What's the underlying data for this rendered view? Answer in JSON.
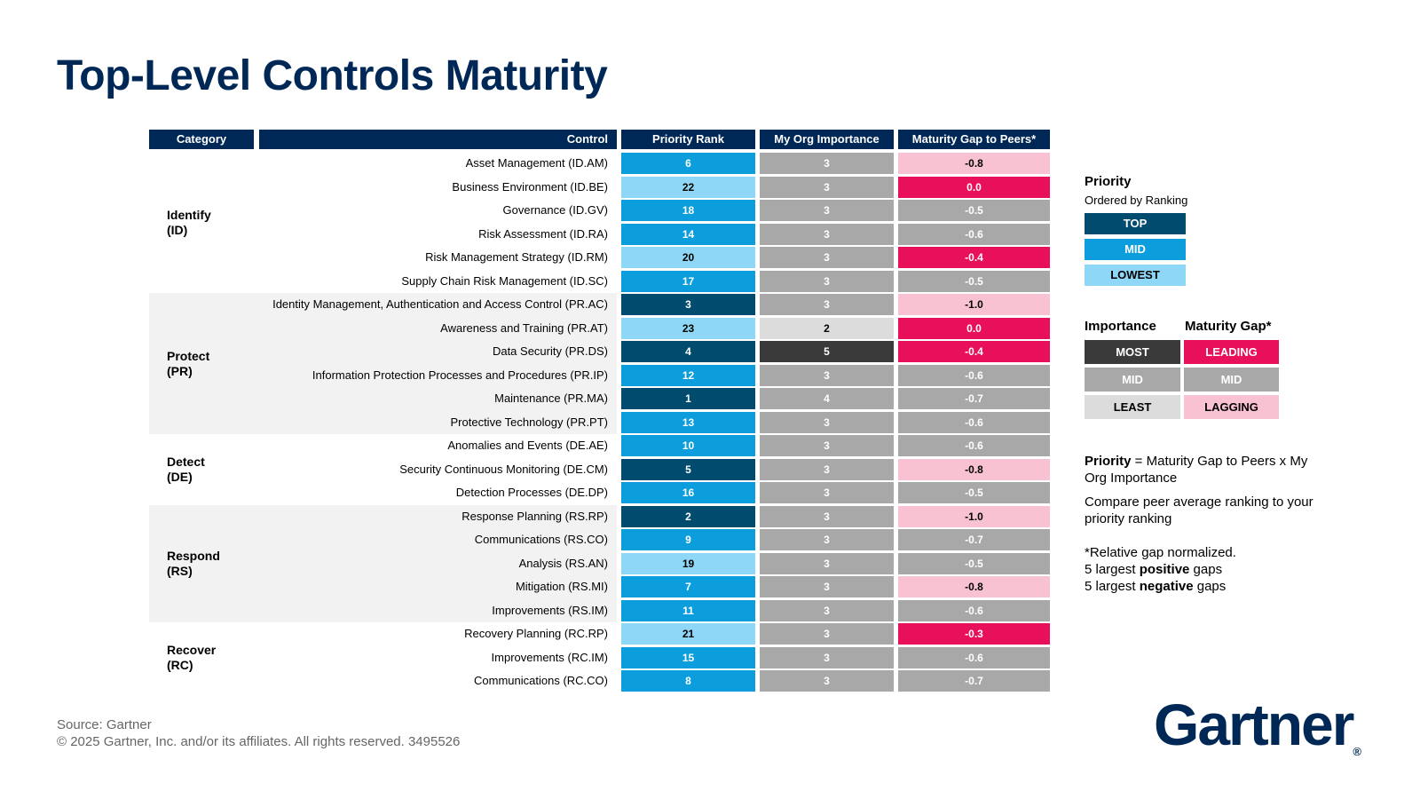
{
  "title": "Top-Level Controls Maturity",
  "colors": {
    "navy": "#002856",
    "rank_top": "#004b6e",
    "rank_mid": "#0c9edc",
    "rank_lowest": "#8fd7f6",
    "importance_most": "#3a3a3a",
    "importance_mid": "#a8a8a8",
    "importance_least": "#dcdcdc",
    "gap_leading": "#e8105a",
    "gap_mid": "#a8a8a8",
    "gap_lagging": "#f8c2d3"
  },
  "table": {
    "headers": {
      "category": "Category",
      "control": "Control",
      "priority_rank": "Priority Rank",
      "importance": "My Org Importance",
      "gap": "Maturity Gap to Peers*"
    },
    "groups": [
      {
        "label": "Identify\n(ID)",
        "rows": [
          {
            "control": "Asset Management (ID.AM)",
            "rank": "6",
            "rank_level": "mid",
            "importance": "3",
            "importance_level": "mid",
            "gap": "-0.8",
            "gap_level": "lagging"
          },
          {
            "control": "Business Environment (ID.BE)",
            "rank": "22",
            "rank_level": "lowest",
            "importance": "3",
            "importance_level": "mid",
            "gap": "0.0",
            "gap_level": "leading"
          },
          {
            "control": "Governance (ID.GV)",
            "rank": "18",
            "rank_level": "mid",
            "importance": "3",
            "importance_level": "mid",
            "gap": "-0.5",
            "gap_level": "mid"
          },
          {
            "control": "Risk Assessment (ID.RA)",
            "rank": "14",
            "rank_level": "mid",
            "importance": "3",
            "importance_level": "mid",
            "gap": "-0.6",
            "gap_level": "mid"
          },
          {
            "control": "Risk Management Strategy (ID.RM)",
            "rank": "20",
            "rank_level": "lowest",
            "importance": "3",
            "importance_level": "mid",
            "gap": "-0.4",
            "gap_level": "leading"
          },
          {
            "control": "Supply Chain Risk Management (ID.SC)",
            "rank": "17",
            "rank_level": "mid",
            "importance": "3",
            "importance_level": "mid",
            "gap": "-0.5",
            "gap_level": "mid"
          }
        ]
      },
      {
        "label": "Protect\n(PR)",
        "rows": [
          {
            "control": "Identity Management, Authentication and Access Control (PR.AC)",
            "rank": "3",
            "rank_level": "top",
            "importance": "3",
            "importance_level": "mid",
            "gap": "-1.0",
            "gap_level": "lagging"
          },
          {
            "control": "Awareness and Training (PR.AT)",
            "rank": "23",
            "rank_level": "lowest",
            "importance": "2",
            "importance_level": "least",
            "gap": "0.0",
            "gap_level": "leading"
          },
          {
            "control": "Data Security (PR.DS)",
            "rank": "4",
            "rank_level": "top",
            "importance": "5",
            "importance_level": "most",
            "gap": "-0.4",
            "gap_level": "leading"
          },
          {
            "control": "Information Protection Processes and Procedures (PR.IP)",
            "rank": "12",
            "rank_level": "mid",
            "importance": "3",
            "importance_level": "mid",
            "gap": "-0.6",
            "gap_level": "mid"
          },
          {
            "control": "Maintenance (PR.MA)",
            "rank": "1",
            "rank_level": "top",
            "importance": "4",
            "importance_level": "mid",
            "gap": "-0.7",
            "gap_level": "mid"
          },
          {
            "control": "Protective Technology (PR.PT)",
            "rank": "13",
            "rank_level": "mid",
            "importance": "3",
            "importance_level": "mid",
            "gap": "-0.6",
            "gap_level": "mid"
          }
        ]
      },
      {
        "label": "Detect\n(DE)",
        "rows": [
          {
            "control": "Anomalies and Events (DE.AE)",
            "rank": "10",
            "rank_level": "mid",
            "importance": "3",
            "importance_level": "mid",
            "gap": "-0.6",
            "gap_level": "mid"
          },
          {
            "control": "Security Continuous Monitoring (DE.CM)",
            "rank": "5",
            "rank_level": "top",
            "importance": "3",
            "importance_level": "mid",
            "gap": "-0.8",
            "gap_level": "lagging"
          },
          {
            "control": "Detection Processes (DE.DP)",
            "rank": "16",
            "rank_level": "mid",
            "importance": "3",
            "importance_level": "mid",
            "gap": "-0.5",
            "gap_level": "mid"
          }
        ]
      },
      {
        "label": "Respond\n(RS)",
        "rows": [
          {
            "control": "Response Planning (RS.RP)",
            "rank": "2",
            "rank_level": "top",
            "importance": "3",
            "importance_level": "mid",
            "gap": "-1.0",
            "gap_level": "lagging"
          },
          {
            "control": "Communications (RS.CO)",
            "rank": "9",
            "rank_level": "mid",
            "importance": "3",
            "importance_level": "mid",
            "gap": "-0.7",
            "gap_level": "mid"
          },
          {
            "control": "Analysis (RS.AN)",
            "rank": "19",
            "rank_level": "lowest",
            "importance": "3",
            "importance_level": "mid",
            "gap": "-0.5",
            "gap_level": "mid"
          },
          {
            "control": "Mitigation (RS.MI)",
            "rank": "7",
            "rank_level": "mid",
            "importance": "3",
            "importance_level": "mid",
            "gap": "-0.8",
            "gap_level": "lagging"
          },
          {
            "control": "Improvements (RS.IM)",
            "rank": "11",
            "rank_level": "mid",
            "importance": "3",
            "importance_level": "mid",
            "gap": "-0.6",
            "gap_level": "mid"
          }
        ]
      },
      {
        "label": "Recover\n(RC)",
        "rows": [
          {
            "control": "Recovery Planning (RC.RP)",
            "rank": "21",
            "rank_level": "lowest",
            "importance": "3",
            "importance_level": "mid",
            "gap": "-0.3",
            "gap_level": "leading"
          },
          {
            "control": "Improvements (RC.IM)",
            "rank": "15",
            "rank_level": "mid",
            "importance": "3",
            "importance_level": "mid",
            "gap": "-0.6",
            "gap_level": "mid"
          },
          {
            "control": "Communications (RC.CO)",
            "rank": "8",
            "rank_level": "mid",
            "importance": "3",
            "importance_level": "mid",
            "gap": "-0.7",
            "gap_level": "mid"
          }
        ]
      }
    ]
  },
  "legend": {
    "priority_title": "Priority",
    "priority_subtitle": "Ordered by Ranking",
    "priority_items": [
      "TOP",
      "MID",
      "LOWEST"
    ],
    "importance_title": "Importance",
    "importance_items": [
      "MOST",
      "MID",
      "LEAST"
    ],
    "gap_title": "Maturity Gap*",
    "gap_items": [
      "LEADING",
      "MID",
      "LAGGING"
    ]
  },
  "notes": {
    "formula_bold": "Priority",
    "formula_rest": " = Maturity Gap to Peers x My Org Importance",
    "compare": "Compare peer average ranking to your priority ranking",
    "footnote_line1": "*Relative gap normalized.",
    "footnote_line2_pre": "5 largest ",
    "footnote_line2_bold": "positive",
    "footnote_line2_post": " gaps",
    "footnote_line3_pre": "5 largest ",
    "footnote_line3_bold": "negative",
    "footnote_line3_post": " gaps"
  },
  "footer": {
    "source": "Source: Gartner",
    "copyright": "© 2025 Gartner, Inc. and/or its affiliates. All rights reserved. 3495526"
  },
  "logo": {
    "text": "Gartner",
    "mark": "®"
  }
}
